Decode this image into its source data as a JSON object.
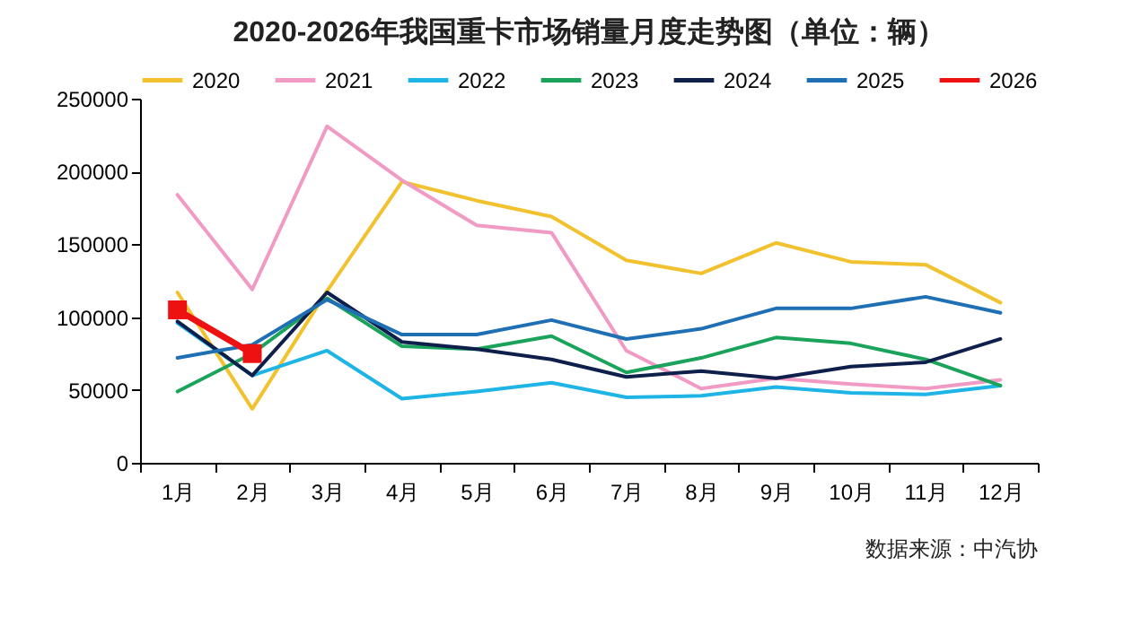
{
  "chart_data": {
    "type": "line",
    "title": "2020-2026年我国重卡市场销量月度走势图（单位：辆）",
    "annotations": [
      "数据来源：中汽协"
    ],
    "categories": [
      "1月",
      "2月",
      "3月",
      "4月",
      "5月",
      "6月",
      "7月",
      "8月",
      "9月",
      "10月",
      "11月",
      "12月"
    ],
    "ylim": [
      0,
      250000
    ],
    "yticks": [
      0,
      50000,
      100000,
      150000,
      200000,
      250000
    ],
    "grid": false,
    "legend": "top",
    "series": [
      {
        "name": "2020",
        "color": "#f2c12e",
        "values": [
          117000,
          37000,
          118000,
          193000,
          180000,
          169000,
          139000,
          130000,
          151000,
          138000,
          136000,
          110000
        ]
      },
      {
        "name": "2021",
        "color": "#f09ac4",
        "values": [
          184000,
          119000,
          231000,
          194000,
          163000,
          158000,
          77000,
          51000,
          58000,
          54000,
          51000,
          57000
        ]
      },
      {
        "name": "2022",
        "color": "#1eb4e6",
        "values": [
          96000,
          60000,
          77000,
          44000,
          49000,
          55000,
          45000,
          46000,
          52000,
          48000,
          47000,
          53000
        ]
      },
      {
        "name": "2023",
        "color": "#1aa35a",
        "values": [
          49000,
          75000,
          113000,
          80000,
          78000,
          87000,
          62000,
          72000,
          86000,
          82000,
          71000,
          53000
        ]
      },
      {
        "name": "2024",
        "color": "#0d1f4a",
        "values": [
          97000,
          60000,
          117000,
          83000,
          78000,
          71000,
          59000,
          63000,
          58000,
          66000,
          69000,
          85000
        ]
      },
      {
        "name": "2025",
        "color": "#1f6fb5",
        "values": [
          72000,
          81000,
          112000,
          88000,
          88000,
          98000,
          85000,
          92000,
          106000,
          106000,
          114000,
          103000
        ]
      },
      {
        "name": "2026",
        "color": "#ee1111",
        "marker": "square",
        "values": [
          105000,
          75000,
          null,
          null,
          null,
          null,
          null,
          null,
          null,
          null,
          null,
          null
        ]
      }
    ]
  }
}
